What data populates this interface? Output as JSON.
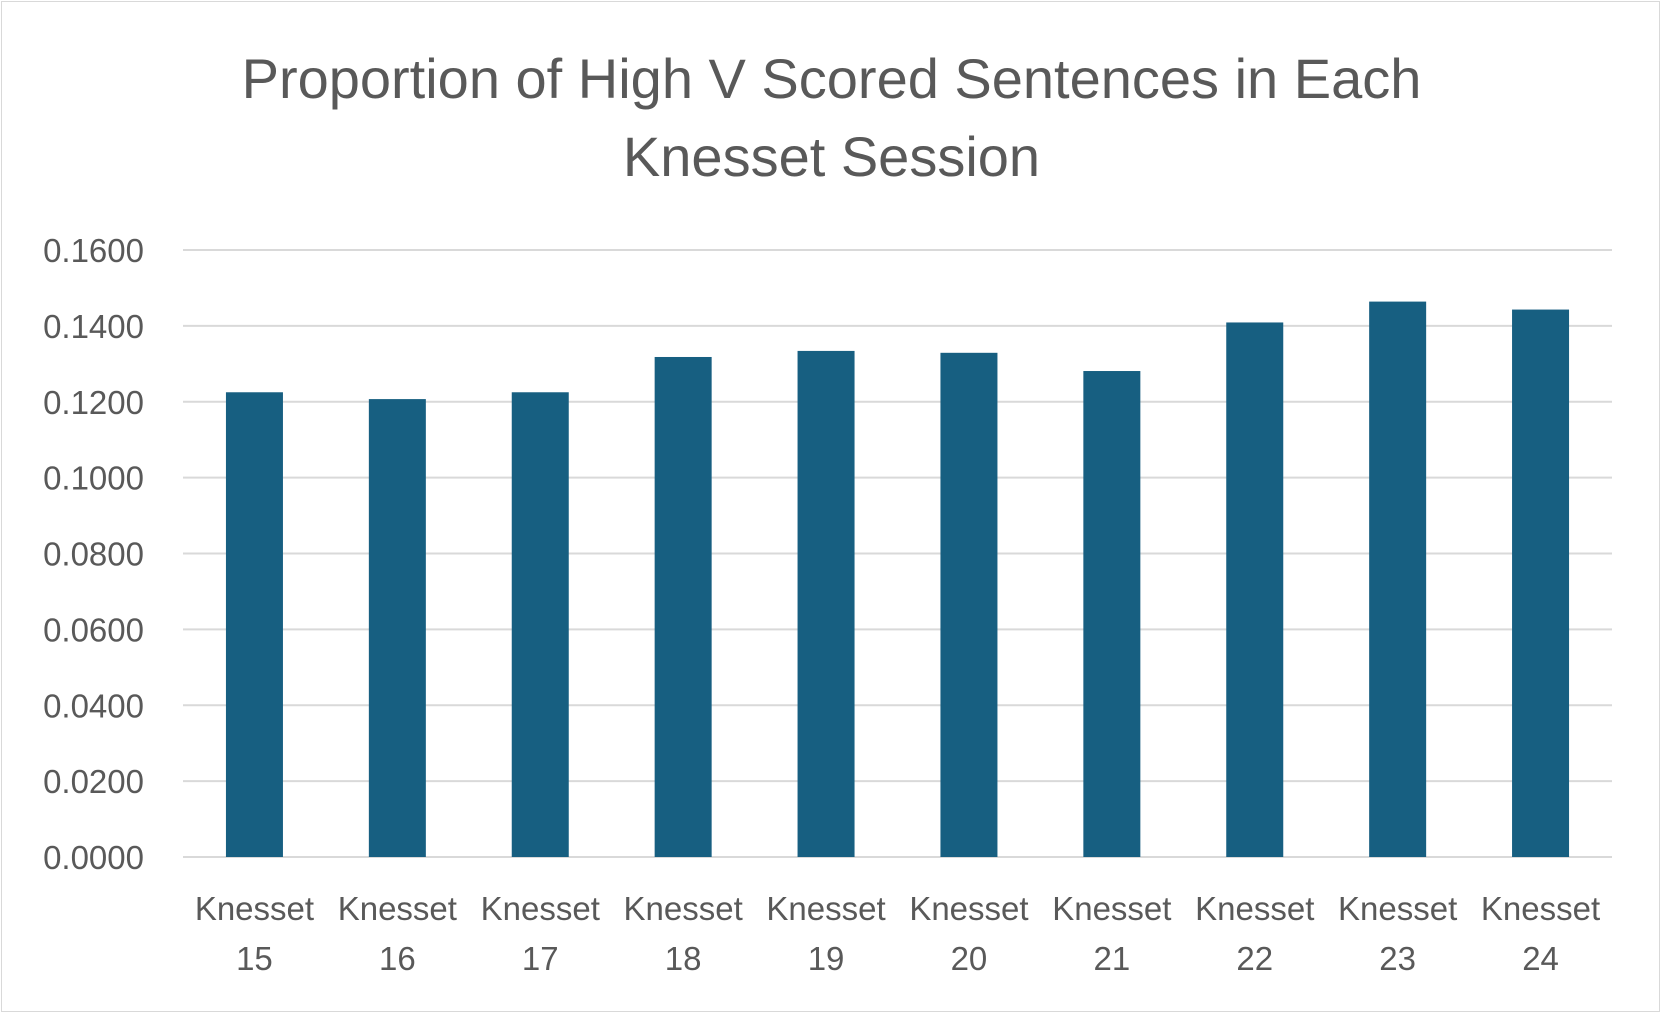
{
  "chart_data": {
    "type": "bar",
    "title_lines": [
      "Proportion of High V Scored Sentences in Each",
      "Knesset Session"
    ],
    "categories": [
      [
        "Knesset",
        "15"
      ],
      [
        "Knesset",
        "16"
      ],
      [
        "Knesset",
        "17"
      ],
      [
        "Knesset",
        "18"
      ],
      [
        "Knesset",
        "19"
      ],
      [
        "Knesset",
        "20"
      ],
      [
        "Knesset",
        "21"
      ],
      [
        "Knesset",
        "22"
      ],
      [
        "Knesset",
        "23"
      ],
      [
        "Knesset",
        "24"
      ]
    ],
    "values": [
      0.1225,
      0.1207,
      0.1225,
      0.1318,
      0.1334,
      0.1329,
      0.1281,
      0.1409,
      0.1464,
      0.1443
    ],
    "ylim": [
      0,
      0.16
    ],
    "ytick_labels": [
      "0.0000",
      "0.0200",
      "0.0400",
      "0.0600",
      "0.0800",
      "0.1000",
      "0.1200",
      "0.1400",
      "0.1600"
    ],
    "grid": true,
    "legend": "none",
    "bar_color": "#175f81",
    "grid_color": "#d9d9d9",
    "text_color": "#595959"
  }
}
